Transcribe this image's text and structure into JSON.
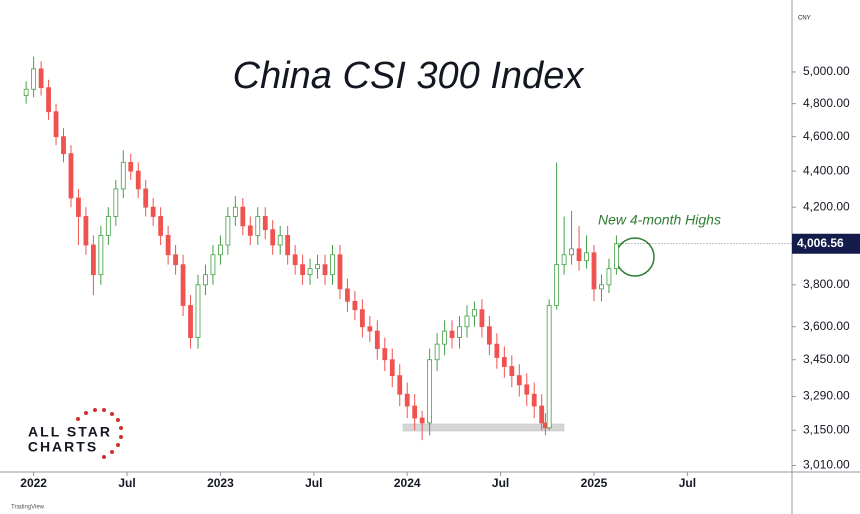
{
  "chart_data": {
    "type": "candlestick",
    "title": "China CSI 300 Index",
    "currency": "CNY",
    "annotation": "New 4-month Highs",
    "logo": {
      "line1": "ALL STAR",
      "line2": "CHARTS"
    },
    "watermark": "TradingView",
    "log_scale": true,
    "grid": false,
    "up_color": "#43a047",
    "down_color": "#ef5350",
    "annotation_color": "#2e7d32",
    "xlim": [
      2021.82,
      2026.06
    ],
    "xticks": [
      {
        "value": 2022,
        "label": "2022"
      },
      {
        "value": 2022.5,
        "label": "Jul"
      },
      {
        "value": 2023,
        "label": "2023"
      },
      {
        "value": 2023.5,
        "label": "Jul"
      },
      {
        "value": 2024,
        "label": "2024"
      },
      {
        "value": 2024.5,
        "label": "Jul"
      },
      {
        "value": 2025,
        "label": "2025"
      },
      {
        "value": 2025.5,
        "label": "Jul"
      }
    ],
    "ylim": [
      2985,
      5430
    ],
    "yticks": [
      {
        "value": 3010,
        "label": "3,010.00"
      },
      {
        "value": 3150,
        "label": "3,150.00"
      },
      {
        "value": 3290,
        "label": "3,290.00"
      },
      {
        "value": 3450,
        "label": "3,450.00"
      },
      {
        "value": 3600,
        "label": "3,600.00"
      },
      {
        "value": 3800,
        "label": "3,800.00"
      },
      {
        "value": 4200,
        "label": "4,200.00"
      },
      {
        "value": 4400,
        "label": "4,400.00"
      },
      {
        "value": 4600,
        "label": "4,600.00"
      },
      {
        "value": 4800,
        "label": "4,800.00"
      },
      {
        "value": 5000,
        "label": "5,000.00"
      }
    ],
    "last_price": {
      "value": 4006.56,
      "label": "4,006.56"
    },
    "x": [
      2021.96,
      2022.0,
      2022.04,
      2022.08,
      2022.12,
      2022.16,
      2022.2,
      2022.24,
      2022.28,
      2022.32,
      2022.36,
      2022.4,
      2022.44,
      2022.48,
      2022.52,
      2022.56,
      2022.6,
      2022.64,
      2022.68,
      2022.72,
      2022.76,
      2022.8,
      2022.84,
      2022.88,
      2022.92,
      2022.96,
      2023.0,
      2023.04,
      2023.08,
      2023.12,
      2023.16,
      2023.2,
      2023.24,
      2023.28,
      2023.32,
      2023.36,
      2023.4,
      2023.44,
      2023.48,
      2023.52,
      2023.56,
      2023.6,
      2023.64,
      2023.68,
      2023.72,
      2023.76,
      2023.8,
      2023.84,
      2023.88,
      2023.92,
      2023.96,
      2024.0,
      2024.04,
      2024.08,
      2024.12,
      2024.16,
      2024.2,
      2024.24,
      2024.28,
      2024.32,
      2024.36,
      2024.4,
      2024.44,
      2024.48,
      2024.52,
      2024.56,
      2024.6,
      2024.64,
      2024.68,
      2024.72,
      2024.74,
      2024.76,
      2024.8,
      2024.84,
      2024.88,
      2024.92,
      2024.96,
      2025.0,
      2025.04,
      2025.08,
      2025.12
    ],
    "open": [
      4850,
      4890,
      5020,
      4900,
      4750,
      4600,
      4500,
      4250,
      4150,
      4000,
      3850,
      4050,
      4150,
      4300,
      4450,
      4400,
      4300,
      4200,
      4150,
      4050,
      3950,
      3900,
      3700,
      3550,
      3800,
      3850,
      3950,
      4000,
      4150,
      4200,
      4100,
      4050,
      4150,
      4080,
      4000,
      4050,
      3950,
      3900,
      3850,
      3880,
      3900,
      3850,
      3950,
      3780,
      3720,
      3680,
      3600,
      3580,
      3500,
      3450,
      3380,
      3300,
      3250,
      3200,
      3180,
      3450,
      3520,
      3580,
      3550,
      3600,
      3650,
      3680,
      3600,
      3520,
      3460,
      3420,
      3380,
      3340,
      3300,
      3250,
      3180,
      3160,
      3700,
      3900,
      3950,
      3980,
      3920,
      3960,
      3780,
      3800,
      3880
    ],
    "high": [
      4940,
      5100,
      5070,
      4950,
      4800,
      4650,
      4550,
      4300,
      4200,
      4050,
      4100,
      4200,
      4350,
      4520,
      4500,
      4450,
      4350,
      4250,
      4200,
      4100,
      4000,
      3950,
      3750,
      3850,
      3900,
      4000,
      4050,
      4200,
      4260,
      4250,
      4150,
      4200,
      4200,
      4130,
      4100,
      4100,
      4000,
      3950,
      3930,
      3950,
      3950,
      4000,
      4000,
      3830,
      3770,
      3730,
      3650,
      3630,
      3550,
      3500,
      3430,
      3350,
      3300,
      3230,
      3500,
      3570,
      3630,
      3630,
      3650,
      3700,
      3720,
      3730,
      3650,
      3570,
      3510,
      3470,
      3430,
      3390,
      3350,
      3300,
      3220,
      3730,
      4450,
      4150,
      4180,
      4100,
      4050,
      4000,
      3850,
      3930,
      4050
    ],
    "low": [
      4800,
      4840,
      4850,
      4700,
      4550,
      4450,
      4200,
      4000,
      3950,
      3750,
      3800,
      4000,
      4100,
      4250,
      4350,
      4250,
      4150,
      4100,
      4000,
      3900,
      3850,
      3650,
      3500,
      3500,
      3750,
      3800,
      3900,
      3950,
      4100,
      4050,
      4000,
      4000,
      4030,
      3950,
      3950,
      3900,
      3850,
      3800,
      3800,
      3830,
      3800,
      3800,
      3730,
      3670,
      3630,
      3550,
      3530,
      3450,
      3400,
      3330,
      3250,
      3200,
      3150,
      3110,
      3130,
      3400,
      3470,
      3500,
      3500,
      3550,
      3600,
      3550,
      3470,
      3410,
      3370,
      3330,
      3290,
      3250,
      3200,
      3150,
      3130,
      3150,
      3680,
      3850,
      3900,
      3870,
      3880,
      3720,
      3720,
      3760,
      3850
    ],
    "close": [
      4890,
      5020,
      4900,
      4750,
      4600,
      4500,
      4250,
      4150,
      4000,
      3850,
      4050,
      4150,
      4300,
      4450,
      4400,
      4300,
      4200,
      4150,
      4050,
      3950,
      3900,
      3700,
      3550,
      3800,
      3850,
      3950,
      4000,
      4150,
      4200,
      4100,
      4050,
      4150,
      4080,
      4000,
      4050,
      3950,
      3900,
      3850,
      3880,
      3900,
      3850,
      3950,
      3780,
      3720,
      3680,
      3600,
      3580,
      3500,
      3450,
      3380,
      3300,
      3250,
      3200,
      3180,
      3450,
      3520,
      3580,
      3550,
      3600,
      3650,
      3680,
      3600,
      3520,
      3460,
      3420,
      3380,
      3340,
      3300,
      3250,
      3180,
      3160,
      3700,
      3900,
      3950,
      3980,
      3920,
      3960,
      3780,
      3800,
      3880,
      4006.56
    ]
  }
}
